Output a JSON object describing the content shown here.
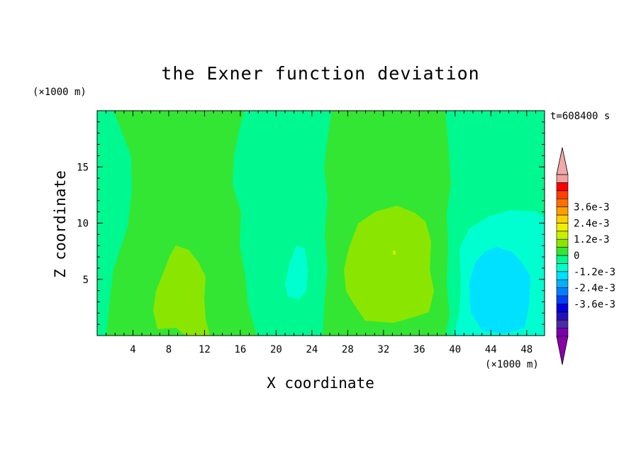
{
  "chart_data": {
    "type": "heatmap",
    "title": "the Exner function deviation",
    "xlabel": "X coordinate",
    "ylabel": "Z coordinate",
    "x_unit": "(×1000 m)",
    "y_unit": "(×1000 m)",
    "time_label": "t=608400 s",
    "xlim": [
      0,
      50
    ],
    "ylim": [
      0,
      20
    ],
    "xticks": [
      4,
      8,
      12,
      16,
      20,
      24,
      28,
      32,
      36,
      40,
      44,
      48
    ],
    "yticks": [
      5,
      10,
      15
    ],
    "colorbar": {
      "levels": [
        "-3.6e-3",
        "-2.4e-3",
        "-1.2e-3",
        "0",
        "1.2e-3",
        "2.4e-3",
        "3.6e-3"
      ],
      "level_values": [
        -0.0036,
        -0.0024,
        -0.0012,
        0,
        0.0012,
        0.0024,
        0.0036
      ],
      "colors": [
        "#7a00b0",
        "#4b2aa8",
        "#2410b8",
        "#0000e0",
        "#0040ff",
        "#0080ff",
        "#00b0ff",
        "#00e0ff",
        "#00ffd0",
        "#00f890",
        "#33e633",
        "#8ae600",
        "#c8f000",
        "#f0f000",
        "#ffd000",
        "#ffa000",
        "#ff7000",
        "#ff4000",
        "#ff0000",
        "#f0a0a0"
      ],
      "under_color": "#8a00a8",
      "over_color": "#f0a8a8"
    },
    "regions": [
      {
        "value": -0.0006,
        "color": "#00f890",
        "x": [
          0,
          50
        ],
        "z": [
          0,
          20
        ],
        "note": "background"
      },
      {
        "value": 0.0003,
        "color": "#33e633",
        "x": [
          2,
          17
        ],
        "z": [
          0,
          20
        ]
      },
      {
        "value": 0.0003,
        "color": "#33e633",
        "x": [
          26,
          40
        ],
        "z": [
          0,
          20
        ]
      },
      {
        "value": 0.0009,
        "color": "#8ae600",
        "x": [
          7,
          12.5
        ],
        "z": [
          0,
          8
        ]
      },
      {
        "value": 0.0009,
        "color": "#8ae600",
        "x": [
          28,
          38
        ],
        "z": [
          1.5,
          11.5
        ]
      },
      {
        "value": -0.0012,
        "color": "#00ffd0",
        "x": [
          22,
          24
        ],
        "z": [
          3,
          8
        ]
      },
      {
        "value": -0.0012,
        "color": "#00ffd0",
        "x": [
          41,
          50
        ],
        "z": [
          0.5,
          11
        ]
      },
      {
        "value": -0.0018,
        "color": "#00e0ff",
        "x": [
          42,
          49
        ],
        "z": [
          0.5,
          8
        ]
      }
    ]
  }
}
